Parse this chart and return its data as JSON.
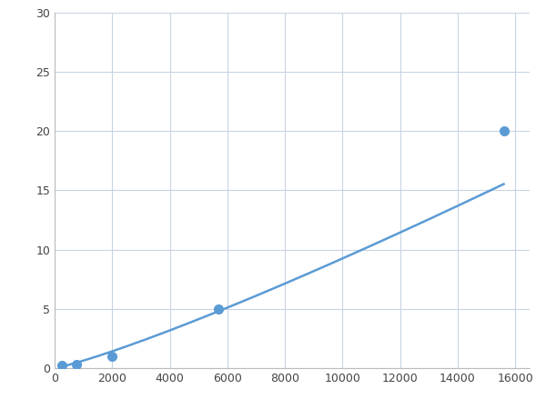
{
  "x_points": [
    250,
    750,
    2000,
    5700,
    15600
  ],
  "y_points": [
    0.2,
    0.3,
    1.0,
    5.0,
    20.0
  ],
  "line_color": "#5B9BD5",
  "marker_color": "#5B9BD5",
  "marker_size": 7,
  "line_width": 1.8,
  "xlim": [
    0,
    16500
  ],
  "ylim": [
    0,
    30
  ],
  "xticks": [
    0,
    2000,
    4000,
    6000,
    8000,
    10000,
    12000,
    14000,
    16000
  ],
  "yticks": [
    0,
    5,
    10,
    15,
    20,
    25,
    30
  ],
  "grid_color": "#C8D4E3",
  "background_color": "#FFFFFF",
  "fig_width": 6.0,
  "fig_height": 4.5,
  "dpi": 100
}
